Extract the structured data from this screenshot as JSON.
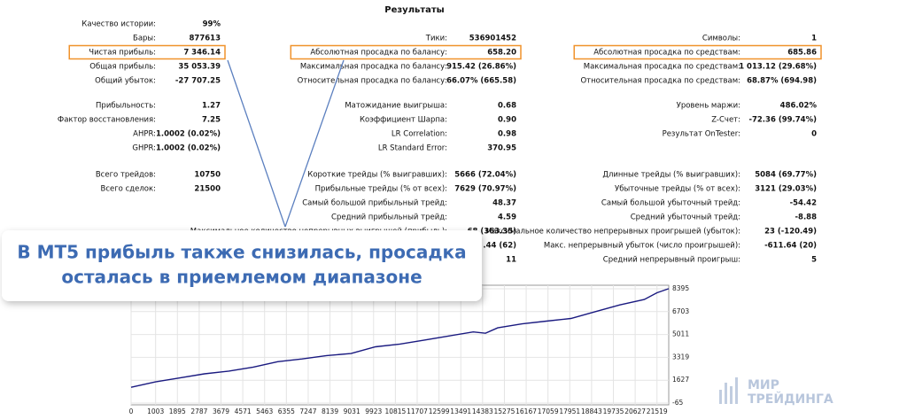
{
  "report": {
    "title": "Результаты",
    "columns": [
      [
        [
          {
            "label": "Качество истории:",
            "value": "99%"
          },
          {
            "label": "Бары:",
            "value": "877613"
          },
          {
            "label": "Чистая прибыль:",
            "value": "7 346.14",
            "highlight": true
          },
          {
            "label": "Общая прибыль:",
            "value": "35 053.39"
          },
          {
            "label": "Общий убыток:",
            "value": "-27 707.25"
          }
        ],
        [
          {
            "label": "Прибыльность:",
            "value": "1.27"
          },
          {
            "label": "Фактор восстановления:",
            "value": "7.25"
          },
          {
            "label": "AHPR:",
            "value": "1.0002 (0.02%)"
          },
          {
            "label": "GHPR:",
            "value": "1.0002 (0.02%)"
          }
        ],
        [
          {
            "label": "Всего трейдов:",
            "value": "10750"
          },
          {
            "label": "Всего сделок:",
            "value": "21500"
          }
        ]
      ],
      [
        [
          {
            "label": "Тики:",
            "value": "536901452"
          },
          {
            "label": "Абсолютная просадка по балансу:",
            "value": "658.20",
            "highlight": true
          },
          {
            "label": "Максимальная просадка по балансу:",
            "value": "915.42 (26.86%)"
          },
          {
            "label": "Относительная просадка по балансу:",
            "value": "66.07% (665.58)"
          }
        ],
        [
          {
            "label": "Матожидание выигрыша:",
            "value": "0.68"
          },
          {
            "label": "Коэффициент Шарпа:",
            "value": "0.90"
          },
          {
            "label": "LR Correlation:",
            "value": "0.98"
          },
          {
            "label": "LR Standard Error:",
            "value": "370.95"
          }
        ],
        [
          {
            "label": "Короткие трейды (% выигравших):",
            "value": "5666 (72.04%)"
          },
          {
            "label": "Прибыльные трейды (% от всех):",
            "value": "7629 (70.97%)"
          },
          {
            "label": "Самый большой прибыльный трейд:",
            "value": "48.37"
          },
          {
            "label": "Средний прибыльный трейд:",
            "value": "4.59"
          },
          {
            "label": "Максимальное количество непрерывных выигрышей (прибыль):",
            "value": "68 (363.35)"
          },
          {
            "value": ".44 (62)"
          },
          {
            "value": "11"
          }
        ]
      ],
      [
        [
          {
            "label": "Символы:",
            "value": "1"
          },
          {
            "label": "Абсолютная просадка по средствам:",
            "value": "685.86",
            "highlight": true
          },
          {
            "label": "Максимальная просадка по средствам:",
            "value": "1 013.12 (29.68%)"
          },
          {
            "label": "Относительная просадка по средствам:",
            "value": "68.87% (694.98)"
          }
        ],
        [
          {
            "label": "Уровень маржи:",
            "value": "486.02%"
          },
          {
            "label": "Z-Счет:",
            "value": "-72.36 (99.74%)"
          },
          {
            "label": "Результат OnTester:",
            "value": "0"
          }
        ],
        [
          {
            "label": "Длинные трейды (% выигравших):",
            "value": "5084 (69.77%)"
          },
          {
            "label": "Убыточные трейды (% от всех):",
            "value": "3121 (29.03%)"
          },
          {
            "label": "Самый большой убыточный трейд:",
            "value": "-54.42"
          },
          {
            "label": "Средний убыточный трейд:",
            "value": "-8.88"
          },
          {
            "label": "Максимальное количество непрерывных проигрышей (убыток):",
            "value": "23 (-120.49)"
          },
          {
            "label": "Макс. непрерывный убыток (число проигрышей):",
            "value": "-611.64 (20)"
          },
          {
            "label": "Средний непрерывный проигрыш:",
            "value": "5"
          }
        ]
      ]
    ]
  },
  "callout": [
    "В МТ5 прибыль также снизилась, просадка",
    "осталась в приемлемом диапазоне"
  ],
  "logo": [
    "МИР",
    "ТРЕЙДИНГА"
  ],
  "chart_data": {
    "type": "line",
    "x": [
      0,
      1000,
      2000,
      3000,
      4000,
      5000,
      6000,
      7000,
      8000,
      9000,
      10000,
      11000,
      12000,
      13000,
      14000,
      14500,
      15000,
      16000,
      17000,
      18000,
      19000,
      20000,
      21000,
      21519,
      22000
    ],
    "series": [
      {
        "color": "#1a1a80",
        "values": [
          1100,
          1500,
          1800,
          2100,
          2300,
          2600,
          3000,
          3200,
          3450,
          3600,
          4100,
          4300,
          4600,
          4900,
          5200,
          5100,
          5500,
          5800,
          6000,
          6200,
          6700,
          7200,
          7600,
          8100,
          8400
        ]
      }
    ],
    "xlim": [
      0,
      22000
    ],
    "ylim": [
      -65,
      8395
    ],
    "xticks": [
      0,
      1003,
      1895,
      2787,
      3679,
      4571,
      5463,
      6355,
      7247,
      8139,
      9031,
      9923,
      10815,
      11707,
      12599,
      13491,
      14383,
      15275,
      16167,
      17059,
      17951,
      18843,
      19735,
      20627,
      21519
    ],
    "yticks": [
      8395,
      6703,
      5011,
      3319,
      1627,
      -65
    ],
    "grid": true
  }
}
